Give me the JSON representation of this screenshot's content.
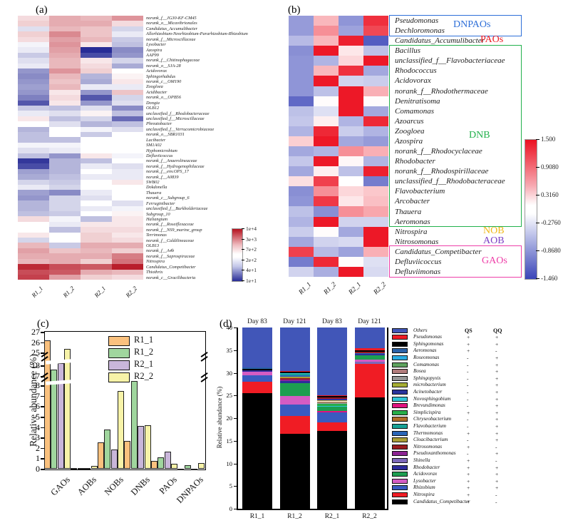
{
  "chart_data": [
    {
      "type": "heatmap",
      "panel_label": "(a)",
      "columns": [
        "R1_1",
        "R1_2",
        "R2_1",
        "R2_2"
      ],
      "colorbar_ticks": [
        "1e+4",
        "3e+3",
        "7e+2",
        "2e+2",
        "4e+1",
        "1e+1"
      ],
      "color_scale_note": "-1 = deep blue (1e+1), 0 = white, 1 = deep red (1e+4)",
      "rows": [
        "norank_f__JG30-KF-CM45",
        "norank_o__Micavibrionales",
        "Candidatus_Accumulibacter",
        "Allorhizobium-Neorhizobium-Pararhizobium-Rhizobium",
        "norank_f__Microscillaceae",
        "Lysobacter",
        "Azospira",
        "AAP99",
        "norank_f__Chitinophagaceae",
        "norank_o__SJA-28",
        "Acidovorax",
        "Sphingorhabdus",
        "norank_c__OM190",
        "Zoogloea",
        "Acidibacter",
        "norank_o__OPB56",
        "Dongia",
        "OLB12",
        "unclassified_f__Rhodobacteraceae",
        "unclassified_f__Microscillaceae",
        "Phreatobacter",
        "unclassified_f__Verrucomicrobiaceae",
        "norank_o__SBR1031",
        "Lacibacter",
        "SM1A02",
        "Hyphomicrobium",
        "Defluviicoccus",
        "norank_f__Anaerolineaceae",
        "norank_f__Hydrogenophilaceae",
        "norank_f__env.OPS_17",
        "norank_f__A0839",
        "SWB02",
        "Dokdonella",
        "Thauera",
        "norank_c__Subgroup_6",
        "Ferruginibacter",
        "unclassified_f__Burkholderiaceae",
        "Subgroup_10",
        "Haliangium",
        "norank_f__Roseiflexaceae",
        "norank_f__NS9_marine_group",
        "Terrimonas",
        "norank_f__Caldilineaceae",
        "OLB13",
        "norank_f__A4b",
        "norank_f__Saprospiraceae",
        "Nitrospira",
        "Candidatus_Competibacter",
        "Thiothrix",
        "norank_c__Gracilibacteria"
      ],
      "values": [
        [
          0.15,
          0.35,
          0.3,
          0.45
        ],
        [
          0.2,
          0.35,
          0.35,
          0.15
        ],
        [
          -0.15,
          0.3,
          0.25,
          -0.2
        ],
        [
          0.2,
          0.5,
          0.25,
          -0.1
        ],
        [
          0.15,
          0.4,
          0.3,
          -0.25
        ],
        [
          -0.05,
          0.45,
          0.1,
          -0.3
        ],
        [
          -0.1,
          0.4,
          -1,
          -0.55
        ],
        [
          -0.25,
          0.35,
          -0.85,
          -0.5
        ],
        [
          -0.15,
          0.3,
          0.1,
          -0.2
        ],
        [
          -0.1,
          0.3,
          0.15,
          -0.4
        ],
        [
          -0.5,
          0.45,
          0.2,
          0
        ],
        [
          -0.55,
          0.3,
          -0.35,
          0.05
        ],
        [
          -0.5,
          0.25,
          -0.4,
          0.1
        ],
        [
          -0.45,
          0.3,
          -0.1,
          -0.1
        ],
        [
          -0.5,
          0.1,
          -0.5,
          0.25
        ],
        [
          -0.6,
          0.15,
          -0.8,
          -0.2
        ],
        [
          -0.8,
          0.1,
          -0.5,
          -0.15
        ],
        [
          -0.25,
          -0.3,
          -0.15,
          -0.55
        ],
        [
          -0.1,
          -0.15,
          0.05,
          -0.3
        ],
        [
          0.1,
          -0.3,
          -0.2,
          -0.7
        ],
        [
          0,
          -0.15,
          -0.35,
          -0.3
        ],
        [
          -0.35,
          0,
          -0.05,
          -0.15
        ],
        [
          -0.3,
          0,
          -0.25,
          0
        ],
        [
          -0.3,
          -0.3,
          0,
          0
        ],
        [
          -0.05,
          -0.05,
          0,
          0
        ],
        [
          -0.15,
          -0.1,
          0,
          0
        ],
        [
          -0.3,
          -0.5,
          0.1,
          -0.05
        ],
        [
          -0.95,
          -0.35,
          -0.3,
          0
        ],
        [
          -0.85,
          -0.35,
          -0.1,
          -0.15
        ],
        [
          -0.45,
          -0.35,
          0,
          -0.1
        ],
        [
          -0.4,
          -0.3,
          -0.1,
          -0.1
        ],
        [
          -0.2,
          -0.25,
          0,
          0.1
        ],
        [
          -0.1,
          -0.2,
          0,
          0
        ],
        [
          -0.45,
          -0.55,
          -0.1,
          0
        ],
        [
          -0.5,
          -0.2,
          -0.15,
          0
        ],
        [
          -0.35,
          -0.2,
          0,
          -0.15
        ],
        [
          -0.35,
          -0.2,
          -0.1,
          -0.05
        ],
        [
          -0.3,
          -0.25,
          0,
          0.05
        ],
        [
          0.15,
          -0.05,
          -0.3,
          0.1
        ],
        [
          0,
          -0.1,
          0.1,
          0.1
        ],
        [
          0,
          -0.3,
          0.15,
          0.15
        ],
        [
          0.1,
          0,
          0.2,
          0.1
        ],
        [
          -0.2,
          0,
          0.2,
          0.15
        ],
        [
          0.3,
          -0.25,
          0.35,
          0.35
        ],
        [
          0.4,
          0.25,
          0.3,
          0.2
        ],
        [
          0.35,
          0.35,
          0.35,
          0.55
        ],
        [
          0.3,
          0.35,
          0.2,
          0.6
        ],
        [
          0.9,
          0.75,
          0.7,
          0.95
        ],
        [
          0.75,
          0.7,
          0.35,
          0.3
        ],
        [
          0.8,
          0.4,
          0.2,
          0.15
        ]
      ]
    },
    {
      "type": "heatmap",
      "panel_label": "(b)",
      "columns": [
        "R1_1",
        "R1_2",
        "R2_1",
        "R2_2"
      ],
      "colorbar_ticks": [
        "1.500",
        "0.9080",
        "0.3160",
        "-0.2760",
        "-0.8680",
        "-1.460"
      ],
      "rows": [
        "Pseudomonas",
        "Dechloromonas",
        "Candidatus_Accumulibacter",
        "Bacillus",
        "unclassified_f__Flavobacteriaceae",
        "Rhodococcus",
        "Acidovorax",
        "norank_f__Rhodothermaceae",
        "Denitratisoma",
        "Comamonas",
        "Azoarcus",
        "Zoogloea",
        "Azospira",
        "norank_f__Rhodocyclaceae",
        "Rhodobacter",
        "norank_f__Rhodospirillaceae",
        "unclassified_f__Rhodobacteraceae",
        "Flavobacterium",
        "Arcobacter",
        "Thauera",
        "Aeromonas",
        "Nitrospira",
        "Nitrosomonas",
        "Candidatus_Competibacter",
        "Defluviicoccus",
        "Defluviimonas"
      ],
      "values": [
        [
          -0.8,
          0.45,
          -0.85,
          1.3
        ],
        [
          -0.8,
          0.7,
          -0.75,
          1.15
        ],
        [
          -0.55,
          0.45,
          1.4,
          -1.3
        ],
        [
          -0.9,
          1.45,
          0.15,
          -0.5
        ],
        [
          -0.85,
          -0.6,
          0.25,
          1.45
        ],
        [
          -0.85,
          0.45,
          1.3,
          -0.7
        ],
        [
          -0.85,
          1.45,
          -0.35,
          -0.4
        ],
        [
          -0.85,
          -0.5,
          1.45,
          0.5
        ],
        [
          -1.2,
          0.02,
          1.45,
          0.02
        ],
        [
          -0.5,
          -0.25,
          1.45,
          -0.7
        ],
        [
          -0.45,
          0.1,
          -0.6,
          1.35
        ],
        [
          -0.6,
          1.35,
          -0.4,
          -0.6
        ],
        [
          0.3,
          1.45,
          -0.7,
          -0.8
        ],
        [
          -0.7,
          -0.6,
          0.7,
          0.5
        ],
        [
          -0.45,
          1.45,
          0.05,
          -0.6
        ],
        [
          -0.7,
          0.1,
          -0.5,
          1.4
        ],
        [
          0.2,
          1.2,
          0,
          -1.05
        ],
        [
          -0.9,
          0.7,
          0.25,
          0.35
        ],
        [
          -0.85,
          1.25,
          0.15,
          0.4
        ],
        [
          -0.5,
          -0.9,
          0.7,
          0.55
        ],
        [
          -0.6,
          1.45,
          -0.35,
          -0.35
        ],
        [
          -0.4,
          0.02,
          -0.7,
          1.45
        ],
        [
          -0.7,
          -0.35,
          -0.3,
          1.45
        ],
        [
          1.2,
          -0.55,
          -0.75,
          0.5
        ],
        [
          -1.05,
          1.35,
          0.02,
          -0.25
        ],
        [
          -0.35,
          -0.65,
          1.45,
          -0.3
        ]
      ],
      "groups": [
        {
          "label": "DNPAOs",
          "color": "#2e6fd8",
          "box": true,
          "row_start": 0,
          "row_end": 1
        },
        {
          "label": "PAOs",
          "color": "#ed1c24",
          "box": false,
          "row_start": 2,
          "row_end": 2
        },
        {
          "label": "DNB",
          "color": "#22b14c",
          "box": true,
          "row_start": 3,
          "row_end": 20
        },
        {
          "label": "NOB",
          "color": "#f0b819",
          "box": false,
          "row_start": 21,
          "row_end": 21
        },
        {
          "label": "AOB",
          "color": "#7b3fc4",
          "box": false,
          "row_start": 22,
          "row_end": 22
        },
        {
          "label": "GAOs",
          "color": "#ee3fa8",
          "box": true,
          "row_start": 23,
          "row_end": 25
        }
      ]
    },
    {
      "type": "bar",
      "panel_label": "(c)",
      "ylabel": "Relative abundance (%)",
      "categories": [
        "GAOs",
        "AOBs",
        "NOBs",
        "DNBs",
        "PAOs",
        "DNPAOs"
      ],
      "yticks_bottom": [
        0,
        1,
        2,
        3,
        4,
        5,
        6,
        7,
        8
      ],
      "yticks_mid": [
        17,
        18
      ],
      "yticks_top": [
        25,
        26,
        27
      ],
      "axis_broken": true,
      "series": [
        {
          "name": "R1_1",
          "color": "#fac17e",
          "values": [
            26.2,
            0.05,
            2.55,
            2.65,
            0.75,
            0.02
          ]
        },
        {
          "name": "R1_2",
          "color": "#a0d69e",
          "values": [
            17.6,
            0.06,
            3.75,
            8.4,
            1.1,
            0.35
          ]
        },
        {
          "name": "R2_1",
          "color": "#c9b6da",
          "values": [
            18.2,
            0.05,
            1.85,
            4.1,
            1.65,
            0.02
          ]
        },
        {
          "name": "R2_2",
          "color": "#f7f3a8",
          "values": [
            25.35,
            0.27,
            7.5,
            4.2,
            0.5,
            0.55
          ]
        }
      ]
    },
    {
      "type": "stacked-bar",
      "panel_label": "(d)",
      "ylabel": "Relative abundance (%)",
      "yticks": [
        0,
        5,
        10,
        15,
        20,
        25,
        30,
        35,
        40
      ],
      "ylim": [
        0,
        40
      ],
      "bars": [
        {
          "x_label": "R1_1",
          "day": "Day 83",
          "segments": [
            [
              "Candidatus_Competibacter",
              25.5
            ],
            [
              "Nitrospira",
              2.5
            ],
            [
              "Rhizobium",
              1.4
            ],
            [
              "Lysobacter",
              0.85
            ],
            [
              "Rhodobacter",
              0.25
            ],
            [
              "Sphingomonas",
              0.4
            ],
            [
              "Aeromonas",
              0.3
            ],
            [
              "Others",
              8.8
            ]
          ]
        },
        {
          "x_label": "R1_2",
          "day": "Day 121",
          "segments": [
            [
              "Candidatus_Competibacter",
              16.6
            ],
            [
              "Nitrospira",
              3.8
            ],
            [
              "Rhizobium",
              2.55
            ],
            [
              "Lysobacter",
              2.0
            ],
            [
              "Acidovorax",
              2.7
            ],
            [
              "Rhodobacter",
              0.5
            ],
            [
              "Pseudoxanthomonas",
              0.3
            ],
            [
              "Nitrosomonas",
              0.35
            ],
            [
              "Cloacibacterium",
              0.3
            ],
            [
              "Thermomonas",
              0.3
            ],
            [
              "Flavobacterium",
              0.3
            ],
            [
              "Novosphingobium",
              0.25
            ],
            [
              "Sphingomonas",
              0.25
            ],
            [
              "Pseudomonas",
              0.2
            ],
            [
              "Others",
              9.6
            ]
          ]
        },
        {
          "x_label": "R2_1",
          "day": "Day 83",
          "segments": [
            [
              "Candidatus_Competibacter",
              17.2
            ],
            [
              "Nitrospira",
              1.85
            ],
            [
              "Rhizobium",
              2.2
            ],
            [
              "Brevundimonas",
              0.3
            ],
            [
              "Acidovorax",
              0.9
            ],
            [
              "Novosphingobium",
              0.3
            ],
            [
              "Simplicispira",
              0.4
            ],
            [
              "Sphingopyxis",
              0.25
            ],
            [
              "Chryseobacterium",
              0.3
            ],
            [
              "Cloacibacterium",
              0.3
            ],
            [
              "Rhodobacter",
              0.3
            ],
            [
              "Nitrosomonas",
              0.25
            ],
            [
              "Sphingomonas",
              0.3
            ],
            [
              "Pseudomonas",
              0.25
            ],
            [
              "Others",
              14.9
            ]
          ]
        },
        {
          "x_label": "R2_2",
          "day": "Day 121",
          "segments": [
            [
              "Candidatus_Competibacter",
              24.5
            ],
            [
              "Nitrospira",
              7.5
            ],
            [
              "Shinella",
              0.4
            ],
            [
              "Lysobacter",
              0.5
            ],
            [
              "Acidovorax",
              0.9
            ],
            [
              "Rhodobacter",
              0.3
            ],
            [
              "Thermomonas",
              0.3
            ],
            [
              "Nitrosomonas",
              0.25
            ],
            [
              "Sphingomonas",
              0.35
            ],
            [
              "Pseudomonas",
              0.4
            ],
            [
              "Others",
              4.6
            ]
          ]
        }
      ],
      "legend": {
        "qs_header": "QS",
        "qq_header": "QQ",
        "items": [
          {
            "name": "Others",
            "color": "#4156b8",
            "qs": "",
            "qq": ""
          },
          {
            "name": "Pseudomonas",
            "color": "#ed1c24",
            "qs": "+",
            "qq": "+"
          },
          {
            "name": "Sphingomonas",
            "color": "#000000",
            "qs": "+",
            "qq": "+"
          },
          {
            "name": "Aeromonas",
            "color": "#2a62a8",
            "qs": "+",
            "qq": "-"
          },
          {
            "name": "Roseomonas",
            "color": "#29abe2",
            "qs": "-",
            "qq": "+"
          },
          {
            "name": "Comamonas",
            "color": "#5ea25e",
            "qs": "-",
            "qq": "+"
          },
          {
            "name": "Bosea",
            "color": "#b07c7c",
            "qs": "-",
            "qq": "+"
          },
          {
            "name": "Sphingopyxis",
            "color": "#969696",
            "qs": "-",
            "qq": "+"
          },
          {
            "name": "microbacterium",
            "color": "#a6ad32",
            "qs": "-",
            "qq": "+"
          },
          {
            "name": "Acinetobacter",
            "color": "#28339c",
            "qs": "-",
            "qq": "+"
          },
          {
            "name": "Novosphingobium",
            "color": "#30c3d6",
            "qs": "-",
            "qq": "+"
          },
          {
            "name": "Brevundimonas",
            "color": "#e0127e",
            "qs": "-",
            "qq": "+"
          },
          {
            "name": "Simplicispira",
            "color": "#27ae49",
            "qs": "+",
            "qq": "+"
          },
          {
            "name": "Chryseobacterium",
            "color": "#b06d28",
            "qs": "-",
            "qq": "+"
          },
          {
            "name": "Flavobacterium",
            "color": "#17a195",
            "qs": "-",
            "qq": "+"
          },
          {
            "name": "Thermomonas",
            "color": "#2b66b8",
            "qs": "+",
            "qq": "+"
          },
          {
            "name": "Cloacibacterium",
            "color": "#ab9e35",
            "qs": "-",
            "qq": "+"
          },
          {
            "name": "Nitrosomonas",
            "color": "#991b1f",
            "qs": "+",
            "qq": "-"
          },
          {
            "name": "Pseudoxanthomonas",
            "color": "#8c2492",
            "qs": "-",
            "qq": "+"
          },
          {
            "name": "Shinella",
            "color": "#7d68ba",
            "qs": "+",
            "qq": "-"
          },
          {
            "name": "Rhodobacter",
            "color": "#2e2c9c",
            "qs": "+",
            "qq": "+"
          },
          {
            "name": "Acidovorax",
            "color": "#1d9e50",
            "qs": "+",
            "qq": "+"
          },
          {
            "name": "Lysobacter",
            "color": "#d45cc3",
            "qs": "+",
            "qq": "+"
          },
          {
            "name": "Rhizobium",
            "color": "#3a5ac0",
            "qs": "+",
            "qq": "+"
          },
          {
            "name": "Nitrospira",
            "color": "#f01c24",
            "qs": "+",
            "qq": "-"
          },
          {
            "name": "Candidatus_Competibacter",
            "color": "#000000",
            "qs": "+",
            "qq": "-"
          }
        ]
      }
    }
  ]
}
